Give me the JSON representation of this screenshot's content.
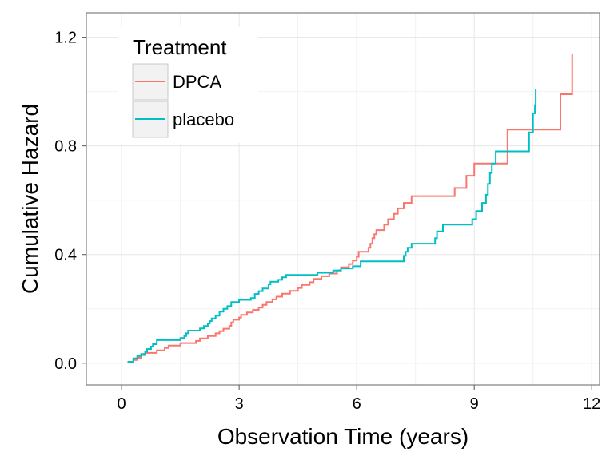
{
  "chart_data": {
    "type": "line",
    "step": true,
    "xlabel": "Observation Time (years)",
    "ylabel": "Cumulative Hazard",
    "xlim": [
      -0.9,
      12.2
    ],
    "ylim": [
      -0.08,
      1.29
    ],
    "xticks": [
      0,
      3,
      6,
      9,
      12
    ],
    "xtick_labels": [
      "0",
      "3",
      "6",
      "9",
      "12"
    ],
    "yticks": [
      0.0,
      0.4,
      0.8,
      1.2
    ],
    "ytick_labels": [
      "0.0",
      "0.4",
      "0.8",
      "1.2"
    ],
    "grid": true,
    "legend": {
      "title": "Treatment",
      "placement": "top-left"
    },
    "series": [
      {
        "name": "DPCA",
        "color": "#F8766D",
        "points": [
          [
            0.15,
            0.005
          ],
          [
            0.3,
            0.012
          ],
          [
            0.4,
            0.02
          ],
          [
            0.5,
            0.03
          ],
          [
            0.6,
            0.038
          ],
          [
            0.9,
            0.047
          ],
          [
            1.1,
            0.056
          ],
          [
            1.2,
            0.065
          ],
          [
            1.5,
            0.074
          ],
          [
            1.9,
            0.082
          ],
          [
            2.0,
            0.091
          ],
          [
            2.2,
            0.1
          ],
          [
            2.4,
            0.11
          ],
          [
            2.5,
            0.118
          ],
          [
            2.6,
            0.127
          ],
          [
            2.75,
            0.137
          ],
          [
            2.8,
            0.15
          ],
          [
            2.85,
            0.16
          ],
          [
            3.0,
            0.168
          ],
          [
            3.05,
            0.178
          ],
          [
            3.2,
            0.187
          ],
          [
            3.35,
            0.196
          ],
          [
            3.5,
            0.205
          ],
          [
            3.6,
            0.215
          ],
          [
            3.7,
            0.225
          ],
          [
            3.85,
            0.235
          ],
          [
            3.95,
            0.245
          ],
          [
            4.1,
            0.256
          ],
          [
            4.3,
            0.266
          ],
          [
            4.5,
            0.277
          ],
          [
            4.6,
            0.288
          ],
          [
            4.8,
            0.298
          ],
          [
            4.9,
            0.31
          ],
          [
            5.1,
            0.32
          ],
          [
            5.3,
            0.33
          ],
          [
            5.5,
            0.342
          ],
          [
            5.6,
            0.353
          ],
          [
            5.8,
            0.365
          ],
          [
            5.9,
            0.378
          ],
          [
            6.0,
            0.392
          ],
          [
            6.05,
            0.41
          ],
          [
            6.3,
            0.425
          ],
          [
            6.35,
            0.44
          ],
          [
            6.4,
            0.46
          ],
          [
            6.45,
            0.475
          ],
          [
            6.5,
            0.49
          ],
          [
            6.7,
            0.51
          ],
          [
            6.8,
            0.53
          ],
          [
            6.95,
            0.55
          ],
          [
            7.05,
            0.57
          ],
          [
            7.2,
            0.59
          ],
          [
            7.4,
            0.615
          ],
          [
            8.5,
            0.645
          ],
          [
            8.8,
            0.69
          ],
          [
            9.0,
            0.735
          ],
          [
            9.85,
            0.86
          ],
          [
            11.2,
            0.99
          ],
          [
            11.5,
            1.14
          ]
        ]
      },
      {
        "name": "placebo",
        "color": "#00BFC4",
        "points": [
          [
            0.15,
            0.005
          ],
          [
            0.3,
            0.018
          ],
          [
            0.4,
            0.026
          ],
          [
            0.5,
            0.034
          ],
          [
            0.6,
            0.043
          ],
          [
            0.65,
            0.052
          ],
          [
            0.75,
            0.061
          ],
          [
            0.8,
            0.07
          ],
          [
            0.9,
            0.085
          ],
          [
            1.5,
            0.093
          ],
          [
            1.6,
            0.1
          ],
          [
            1.65,
            0.11
          ],
          [
            1.7,
            0.12
          ],
          [
            2.0,
            0.128
          ],
          [
            2.1,
            0.137
          ],
          [
            2.2,
            0.146
          ],
          [
            2.25,
            0.155
          ],
          [
            2.3,
            0.165
          ],
          [
            2.4,
            0.175
          ],
          [
            2.5,
            0.19
          ],
          [
            2.6,
            0.2
          ],
          [
            2.7,
            0.21
          ],
          [
            2.8,
            0.225
          ],
          [
            3.0,
            0.233
          ],
          [
            3.3,
            0.24
          ],
          [
            3.4,
            0.255
          ],
          [
            3.5,
            0.265
          ],
          [
            3.6,
            0.275
          ],
          [
            3.75,
            0.29
          ],
          [
            3.8,
            0.3
          ],
          [
            4.0,
            0.307
          ],
          [
            4.1,
            0.316
          ],
          [
            4.2,
            0.325
          ],
          [
            5.0,
            0.333
          ],
          [
            5.4,
            0.341
          ],
          [
            5.6,
            0.349
          ],
          [
            5.9,
            0.357
          ],
          [
            6.1,
            0.375
          ],
          [
            7.2,
            0.395
          ],
          [
            7.25,
            0.41
          ],
          [
            7.3,
            0.425
          ],
          [
            7.4,
            0.44
          ],
          [
            8.0,
            0.46
          ],
          [
            8.05,
            0.485
          ],
          [
            8.2,
            0.51
          ],
          [
            8.95,
            0.53
          ],
          [
            9.05,
            0.56
          ],
          [
            9.2,
            0.59
          ],
          [
            9.3,
            0.62
          ],
          [
            9.35,
            0.66
          ],
          [
            9.4,
            0.7
          ],
          [
            9.45,
            0.735
          ],
          [
            9.55,
            0.78
          ],
          [
            10.4,
            0.85
          ],
          [
            10.5,
            0.92
          ],
          [
            10.55,
            0.95
          ],
          [
            10.57,
            1.01
          ]
        ]
      }
    ]
  }
}
